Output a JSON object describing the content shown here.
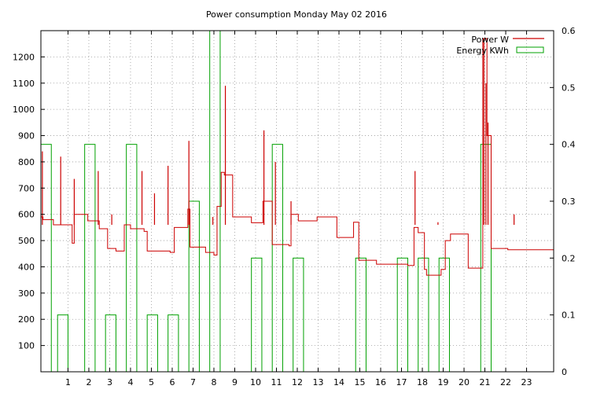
{
  "chart_data": {
    "type": "line",
    "title": "Power consumption Monday May 02 2016",
    "x": {
      "range": [
        -0.3,
        24.3
      ],
      "ticks": [
        1,
        2,
        3,
        4,
        5,
        6,
        7,
        8,
        9,
        10,
        11,
        12,
        13,
        14,
        15,
        16,
        17,
        18,
        19,
        20,
        21,
        22,
        23
      ]
    },
    "y_left": {
      "range": [
        0,
        1300
      ],
      "ticks": [
        100,
        200,
        300,
        400,
        500,
        600,
        700,
        800,
        900,
        1000,
        1100,
        1200
      ]
    },
    "y_right": {
      "range": [
        0,
        0.6
      ],
      "ticks": [
        0,
        0.1,
        0.2,
        0.3,
        0.4,
        0.5,
        0.6
      ]
    },
    "grid": true,
    "legend": "top-right",
    "series": [
      {
        "name": "Power W",
        "axis": "left",
        "style": "step",
        "color": "#cc0000",
        "points": [
          [
            -0.3,
            590
          ],
          [
            -0.2,
            580
          ],
          [
            0.3,
            560
          ],
          [
            0.8,
            560
          ],
          [
            1.2,
            490
          ],
          [
            1.3,
            600
          ],
          [
            1.95,
            575
          ],
          [
            2.5,
            545
          ],
          [
            2.9,
            470
          ],
          [
            3.3,
            460
          ],
          [
            3.7,
            560
          ],
          [
            4.0,
            545
          ],
          [
            4.65,
            535
          ],
          [
            4.8,
            460
          ],
          [
            5.9,
            455
          ],
          [
            6.1,
            550
          ],
          [
            6.75,
            620
          ],
          [
            6.85,
            475
          ],
          [
            7.6,
            455
          ],
          [
            8.0,
            445
          ],
          [
            8.15,
            630
          ],
          [
            8.35,
            760
          ],
          [
            8.5,
            750
          ],
          [
            8.9,
            590
          ],
          [
            9.8,
            568
          ],
          [
            10.35,
            650
          ],
          [
            10.8,
            485
          ],
          [
            11.6,
            480
          ],
          [
            11.7,
            600
          ],
          [
            12.05,
            575
          ],
          [
            12.95,
            590
          ],
          [
            13.9,
            512
          ],
          [
            14.7,
            570
          ],
          [
            14.95,
            425
          ],
          [
            15.8,
            410
          ],
          [
            17.3,
            405
          ],
          [
            17.6,
            550
          ],
          [
            17.8,
            530
          ],
          [
            18.1,
            390
          ],
          [
            18.2,
            368
          ],
          [
            18.9,
            390
          ],
          [
            19.1,
            500
          ],
          [
            19.35,
            525
          ],
          [
            20.2,
            395
          ],
          [
            20.8,
            395
          ],
          [
            20.9,
            1270
          ],
          [
            21.1,
            900
          ],
          [
            21.3,
            470
          ],
          [
            22.1,
            465
          ],
          [
            22.5,
            465
          ]
        ],
        "spikes": [
          [
            -0.23,
            840
          ],
          [
            0.65,
            820
          ],
          [
            1.3,
            735
          ],
          [
            2.45,
            765
          ],
          [
            3.1,
            600
          ],
          [
            4.55,
            765
          ],
          [
            5.15,
            680
          ],
          [
            5.8,
            785
          ],
          [
            6.8,
            880
          ],
          [
            7.95,
            590
          ],
          [
            8.55,
            1090
          ],
          [
            10.4,
            920
          ],
          [
            10.95,
            800
          ],
          [
            11.7,
            650
          ],
          [
            17.65,
            765
          ],
          [
            18.75,
            570
          ],
          [
            20.95,
            1270
          ],
          [
            21.05,
            1100
          ],
          [
            21.15,
            950
          ],
          [
            22.4,
            600
          ]
        ]
      },
      {
        "name": "Energy KWh",
        "axis": "right",
        "style": "boxes",
        "color": "#00a000",
        "bars": [
          [
            -0.3,
            0.4
          ],
          [
            0.5,
            0.1
          ],
          [
            1.8,
            0.4
          ],
          [
            2.8,
            0.1
          ],
          [
            3.8,
            0.4
          ],
          [
            4.8,
            0.1
          ],
          [
            5.8,
            0.1
          ],
          [
            6.8,
            0.3
          ],
          [
            7.8,
            0.6
          ],
          [
            9.8,
            0.2
          ],
          [
            10.8,
            0.4
          ],
          [
            11.8,
            0.2
          ],
          [
            14.8,
            0.2
          ],
          [
            16.8,
            0.2
          ],
          [
            17.8,
            0.2
          ],
          [
            18.8,
            0.2
          ],
          [
            20.8,
            0.4
          ]
        ],
        "bar_width": 0.5
      }
    ]
  }
}
